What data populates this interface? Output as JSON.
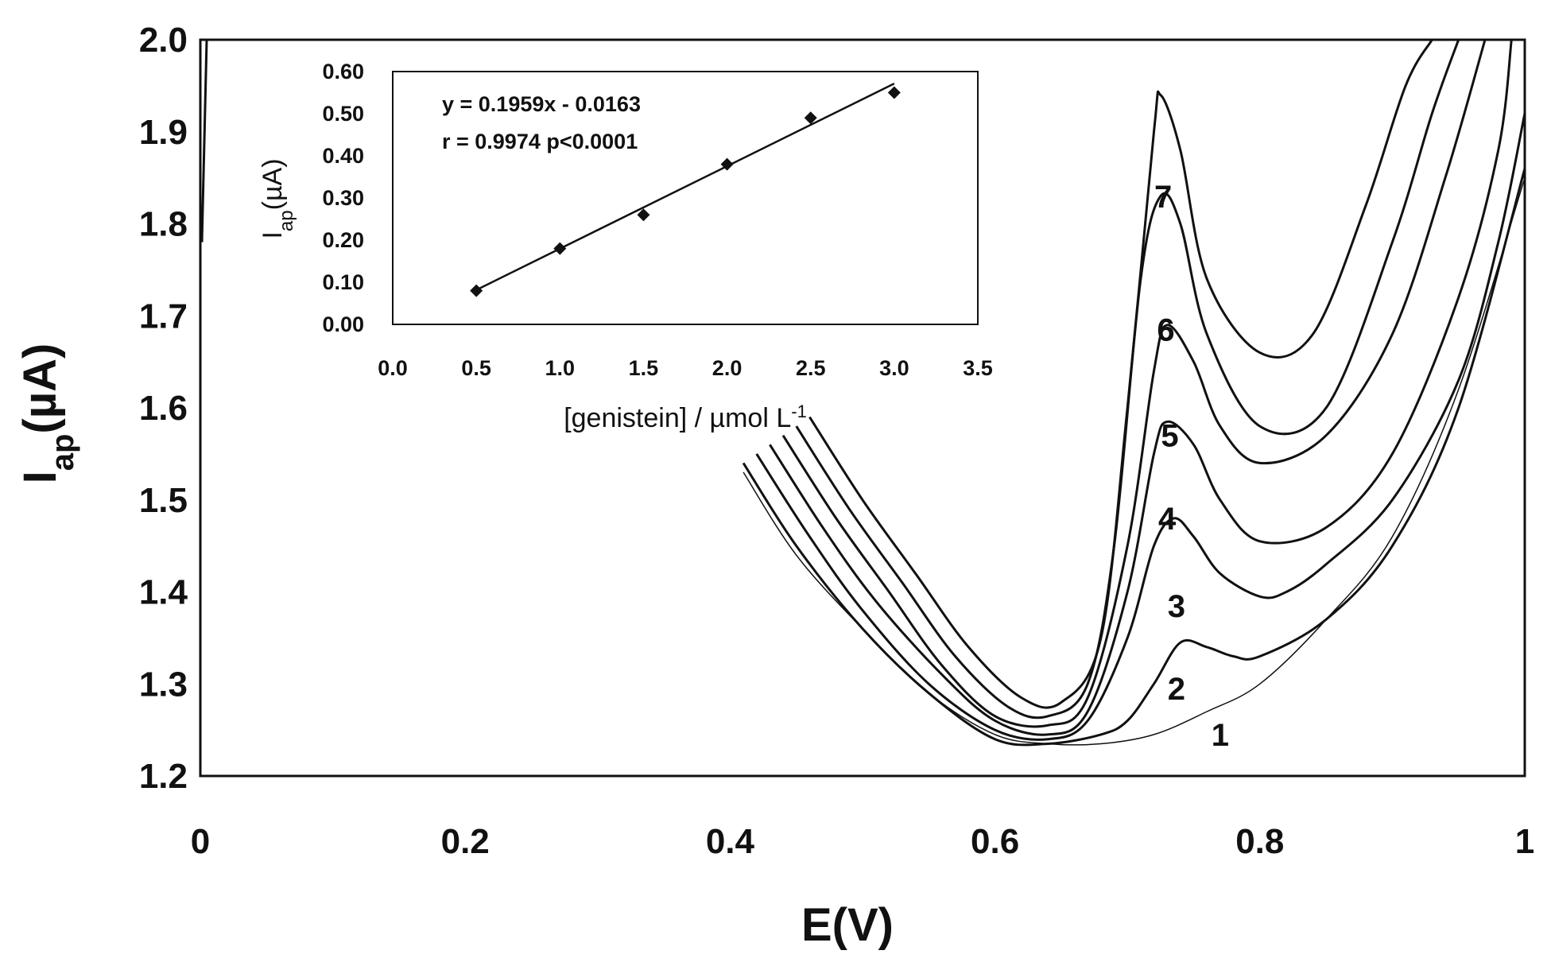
{
  "chart_data": [
    {
      "type": "line",
      "xlabel": "E(V)",
      "ylabel_main": "I",
      "ylabel_sub": "ap",
      "ylabel_unit": "(µA)",
      "xlim": [
        0,
        1
      ],
      "ylim": [
        1.2,
        2.0
      ],
      "x_ticks": [
        "0",
        "0.2",
        "0.4",
        "0.6",
        "0.8",
        "1"
      ],
      "y_ticks": [
        "1.2",
        "1.3",
        "1.4",
        "1.5",
        "1.6",
        "1.7",
        "1.8",
        "1.9",
        "2.0"
      ],
      "series": [
        {
          "name": "1",
          "x": [
            0.41,
            0.45,
            0.5,
            0.55,
            0.6,
            0.64,
            0.68,
            0.72,
            0.76,
            0.8,
            0.85,
            0.9,
            0.95,
            1.0
          ],
          "y": [
            1.53,
            1.44,
            1.36,
            1.29,
            1.245,
            1.235,
            1.235,
            1.245,
            1.27,
            1.3,
            1.37,
            1.46,
            1.62,
            1.85
          ]
        },
        {
          "name": "2",
          "x": [
            0.41,
            0.45,
            0.5,
            0.55,
            0.6,
            0.64,
            0.68,
            0.7,
            0.72,
            0.74,
            0.76,
            0.78,
            0.8,
            0.85,
            0.9,
            0.95,
            1.0
          ],
          "y": [
            1.54,
            1.45,
            1.36,
            1.29,
            1.24,
            1.235,
            1.245,
            1.26,
            1.3,
            1.345,
            1.34,
            1.33,
            1.33,
            1.37,
            1.45,
            1.6,
            1.86
          ]
        },
        {
          "name": "3",
          "x": [
            0.42,
            0.46,
            0.5,
            0.55,
            0.6,
            0.64,
            0.67,
            0.7,
            0.72,
            0.735,
            0.75,
            0.77,
            0.8,
            0.82,
            0.85,
            0.9,
            0.95,
            0.98,
            1.0
          ],
          "y": [
            1.55,
            1.46,
            1.38,
            1.3,
            1.25,
            1.24,
            1.26,
            1.35,
            1.45,
            1.48,
            1.46,
            1.42,
            1.395,
            1.4,
            1.43,
            1.5,
            1.63,
            1.78,
            1.92
          ]
        },
        {
          "name": "4",
          "x": [
            0.43,
            0.47,
            0.51,
            0.56,
            0.6,
            0.64,
            0.67,
            0.7,
            0.72,
            0.73,
            0.75,
            0.77,
            0.8,
            0.85,
            0.9,
            0.95,
            0.98,
            0.99
          ],
          "y": [
            1.56,
            1.47,
            1.39,
            1.31,
            1.26,
            1.245,
            1.27,
            1.4,
            1.55,
            1.585,
            1.56,
            1.5,
            1.455,
            1.47,
            1.55,
            1.72,
            1.88,
            2.0
          ]
        },
        {
          "name": "5",
          "x": [
            0.44,
            0.48,
            0.52,
            0.56,
            0.6,
            0.64,
            0.67,
            0.7,
            0.72,
            0.73,
            0.75,
            0.77,
            0.8,
            0.85,
            0.9,
            0.94,
            0.97
          ],
          "y": [
            1.57,
            1.48,
            1.4,
            1.32,
            1.265,
            1.255,
            1.285,
            1.45,
            1.64,
            1.69,
            1.65,
            1.58,
            1.54,
            1.57,
            1.68,
            1.85,
            2.0
          ]
        },
        {
          "name": "6",
          "x": [
            0.45,
            0.49,
            0.53,
            0.57,
            0.61,
            0.64,
            0.67,
            0.69,
            0.71,
            0.725,
            0.74,
            0.76,
            0.8,
            0.85,
            0.9,
            0.93,
            0.95
          ],
          "y": [
            1.58,
            1.49,
            1.41,
            1.33,
            1.275,
            1.265,
            1.3,
            1.45,
            1.74,
            1.83,
            1.8,
            1.68,
            1.58,
            1.6,
            1.78,
            1.92,
            2.0
          ]
        },
        {
          "name": "7",
          "x": [
            0.46,
            0.5,
            0.54,
            0.58,
            0.62,
            0.65,
            0.68,
            0.7,
            0.72,
            0.725,
            0.74,
            0.76,
            0.8,
            0.84,
            0.88,
            0.91,
            0.93
          ],
          "y": [
            1.59,
            1.5,
            1.42,
            1.34,
            1.285,
            1.28,
            1.35,
            1.6,
            1.9,
            1.94,
            1.88,
            1.74,
            1.66,
            1.68,
            1.82,
            1.95,
            2.0
          ]
        }
      ],
      "curve_labels": [
        {
          "text": "1",
          "x": 0.77,
          "y": 1.245
        },
        {
          "text": "2",
          "x": 0.737,
          "y": 1.295
        },
        {
          "text": "3",
          "x": 0.737,
          "y": 1.385
        },
        {
          "text": "4",
          "x": 0.73,
          "y": 1.48
        },
        {
          "text": "5",
          "x": 0.732,
          "y": 1.57
        },
        {
          "text": "6",
          "x": 0.729,
          "y": 1.685
        },
        {
          "text": "7",
          "x": 0.727,
          "y": 1.83
        }
      ]
    },
    {
      "type": "scatter",
      "xlabel": "[genistein] / µmol L",
      "xlabel_sup": "-1",
      "ylabel_main": "I",
      "ylabel_sub": "ap",
      "ylabel_unit": "(µA)",
      "xlim": [
        0,
        3.5
      ],
      "ylim": [
        0,
        0.6
      ],
      "x_ticks": [
        "0.0",
        "0.5",
        "1.0",
        "1.5",
        "2.0",
        "2.5",
        "3.0",
        "3.5"
      ],
      "y_ticks": [
        "0.00",
        "0.10",
        "0.20",
        "0.30",
        "0.40",
        "0.50",
        "0.60"
      ],
      "x": [
        0.5,
        1.0,
        1.5,
        2.0,
        2.5,
        3.0
      ],
      "y": [
        0.08,
        0.18,
        0.26,
        0.38,
        0.49,
        0.55
      ],
      "fit": {
        "slope": 0.1959,
        "intercept": -0.0163
      },
      "annotations": [
        "y = 0.1959x - 0.0163",
        "r = 0.9974 p<0.0001"
      ]
    }
  ],
  "colors": {
    "line": "#111111",
    "background": "#ffffff"
  }
}
